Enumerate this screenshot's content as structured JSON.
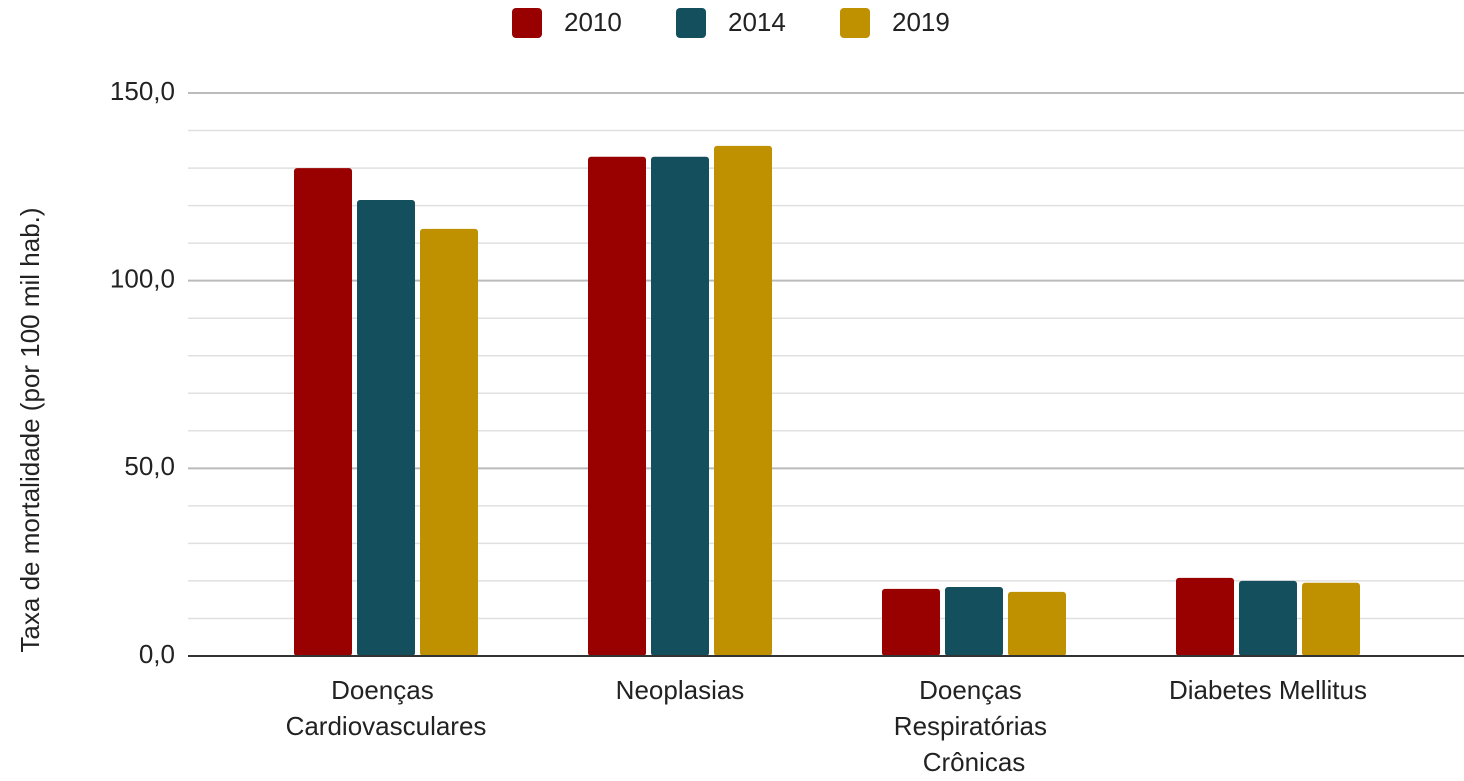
{
  "chart_data": {
    "type": "bar",
    "y_axis_label": "Taxa de mortalidade (por 100 mil hab.)",
    "categories": [
      "Doenças Cardiovasculares",
      "Neoplasias",
      "Doenças Respiratórias Crônicas",
      "Diabetes Mellitus"
    ],
    "series": [
      {
        "name": "2010",
        "color": "#990000",
        "values": [
          130.0,
          133.0,
          17.9,
          20.8
        ]
      },
      {
        "name": "2014",
        "color": "#134f5c",
        "values": [
          121.5,
          133.0,
          18.4,
          20.0
        ]
      },
      {
        "name": "2019",
        "color": "#bf9000",
        "values": [
          113.8,
          135.9,
          17.1,
          19.5
        ]
      }
    ],
    "ylim": [
      0,
      150
    ],
    "yticks": [
      {
        "value": 0,
        "label": "0,0"
      },
      {
        "value": 50,
        "label": "50,0"
      },
      {
        "value": 100,
        "label": "100,0"
      },
      {
        "value": 150,
        "label": "150,0"
      }
    ],
    "yminorticks": [
      10,
      20,
      30,
      40,
      60,
      70,
      80,
      90,
      110,
      120,
      130,
      140
    ],
    "grid": true,
    "legend": "top"
  }
}
